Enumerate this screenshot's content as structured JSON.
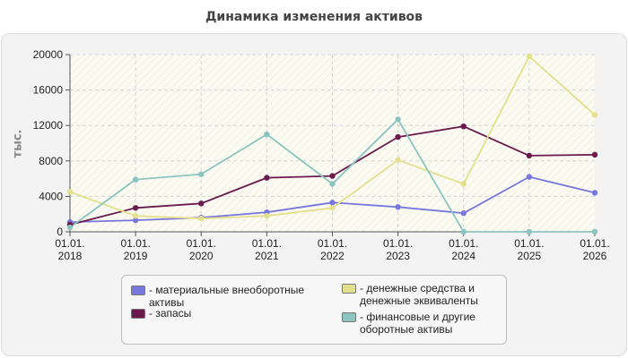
{
  "title": "Динамика изменения активов",
  "chart_data": {
    "type": "line",
    "title": "Динамика изменения активов",
    "xlabel": "",
    "ylabel": "тыс.",
    "categories": [
      "01.01.\n2018",
      "01.01.\n2019",
      "01.01.\n2020",
      "01.01.\n2021",
      "01.01.\n2022",
      "01.01.\n2023",
      "01.01.\n2024",
      "01.01.\n2025",
      "01.01.\n2026"
    ],
    "ylim": [
      0,
      20000
    ],
    "yticks": [
      "0",
      "4000",
      "8000",
      "12000",
      "16000",
      "20000"
    ],
    "grid": true,
    "legend_position": "bottom",
    "series": [
      {
        "name": "- материальные внеоборотные активы",
        "color": "#7777dd",
        "values": [
          1100,
          1300,
          1600,
          2200,
          3300,
          2800,
          2100,
          6200,
          4400
        ]
      },
      {
        "name": "- запасы",
        "color": "#6b1a4e",
        "values": [
          800,
          2700,
          3200,
          6100,
          6300,
          10700,
          11900,
          8600,
          8700
        ]
      },
      {
        "name": "- денежные средства и денежные эквиваленты",
        "color": "#e3e08c",
        "values": [
          4500,
          1800,
          1500,
          1800,
          2700,
          8100,
          5400,
          19800,
          13200
        ]
      },
      {
        "name": "- финансовые и другие оборотные активы",
        "color": "#8cc4c0",
        "values": [
          500,
          5900,
          6500,
          11000,
          5400,
          12700,
          0,
          0,
          0
        ]
      }
    ]
  }
}
